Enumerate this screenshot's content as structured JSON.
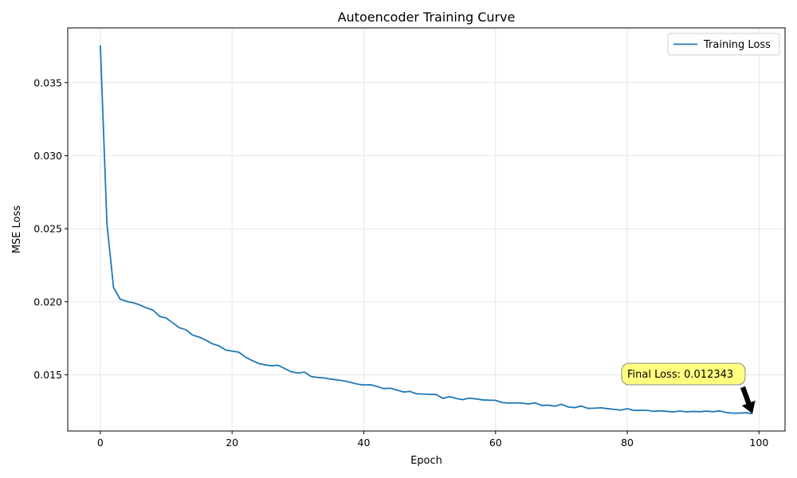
{
  "chart_data": {
    "type": "line",
    "title": "Autoencoder Training Curve",
    "xlabel": "Epoch",
    "ylabel": "MSE Loss",
    "xlim": [
      -4.95,
      103.95
    ],
    "ylim": [
      0.01115,
      0.03875
    ],
    "xticks": [
      0,
      20,
      40,
      60,
      80,
      100
    ],
    "yticks": [
      0.015,
      0.02,
      0.025,
      0.03,
      0.035
    ],
    "ytick_labels": [
      "0.015",
      "0.020",
      "0.025",
      "0.030",
      "0.035"
    ],
    "grid": true,
    "legend_position": "top-right",
    "series": [
      {
        "name": "Training Loss",
        "color": "#1f77b4",
        "x": [
          0,
          1,
          2,
          3,
          4,
          5,
          6,
          7,
          8,
          9,
          10,
          11,
          12,
          13,
          14,
          15,
          16,
          17,
          18,
          19,
          20,
          21,
          22,
          23,
          24,
          25,
          26,
          27,
          28,
          29,
          30,
          31,
          32,
          33,
          34,
          35,
          36,
          37,
          38,
          39,
          40,
          41,
          42,
          43,
          44,
          45,
          46,
          47,
          48,
          49,
          50,
          51,
          52,
          53,
          54,
          55,
          56,
          57,
          58,
          59,
          60,
          61,
          62,
          63,
          64,
          65,
          66,
          67,
          68,
          69,
          70,
          71,
          72,
          73,
          74,
          75,
          76,
          77,
          78,
          79,
          80,
          81,
          82,
          83,
          84,
          85,
          86,
          87,
          88,
          89,
          90,
          91,
          92,
          93,
          94,
          95,
          96,
          97,
          98,
          99
        ],
        "y": [
          0.03755,
          0.02535,
          0.02098,
          0.02018,
          0.02002,
          0.01993,
          0.01978,
          0.01958,
          0.01942,
          0.019,
          0.01888,
          0.01855,
          0.01822,
          0.01808,
          0.01772,
          0.01758,
          0.01738,
          0.01712,
          0.01698,
          0.0167,
          0.01662,
          0.01655,
          0.01622,
          0.01598,
          0.01578,
          0.01568,
          0.01562,
          0.01565,
          0.01542,
          0.0152,
          0.01512,
          0.01518,
          0.01488,
          0.01482,
          0.01478,
          0.0147,
          0.01465,
          0.01458,
          0.01448,
          0.01436,
          0.0143,
          0.01432,
          0.0142,
          0.01405,
          0.01408,
          0.01396,
          0.01382,
          0.01386,
          0.0137,
          0.01368,
          0.01366,
          0.01365,
          0.01338,
          0.0135,
          0.01338,
          0.0133,
          0.0134,
          0.01335,
          0.01328,
          0.01326,
          0.01325,
          0.0131,
          0.01306,
          0.01308,
          0.01306,
          0.013,
          0.01308,
          0.0129,
          0.01292,
          0.01285,
          0.01298,
          0.0128,
          0.01275,
          0.01286,
          0.0127,
          0.01271,
          0.01274,
          0.01268,
          0.01263,
          0.01258,
          0.01268,
          0.01256,
          0.01257,
          0.01256,
          0.0125,
          0.01253,
          0.01249,
          0.01246,
          0.01252,
          0.01246,
          0.01249,
          0.01247,
          0.01251,
          0.01247,
          0.01253,
          0.01242,
          0.01237,
          0.01237,
          0.0124,
          0.01234
        ]
      }
    ],
    "annotation": {
      "text": "Final Loss: 0.012343",
      "x": 99,
      "y": 0.012343,
      "box_color": "#ffff80"
    }
  }
}
